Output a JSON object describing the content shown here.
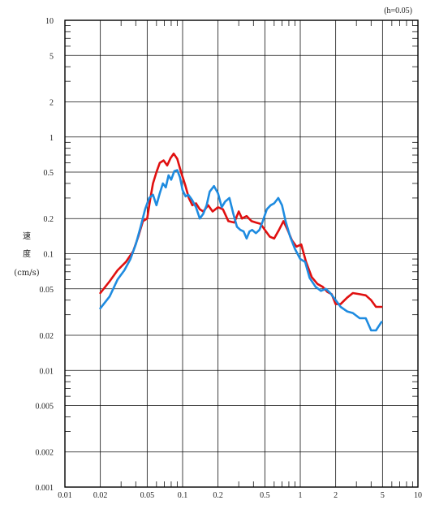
{
  "chart_data": {
    "type": "line",
    "note": "(h=0.05)",
    "ylabel": [
      "速",
      "度",
      "(cm/s)"
    ],
    "xlabel": "",
    "x_scale": "log",
    "y_scale": "log",
    "xlim": [
      0.01,
      10
    ],
    "ylim": [
      0.001,
      10
    ],
    "grid": true,
    "x_tick_labels": [
      {
        "value": 0.01,
        "label": "0.01"
      },
      {
        "value": 0.02,
        "label": "0.02"
      },
      {
        "value": 0.05,
        "label": "0.05"
      },
      {
        "value": 0.1,
        "label": "0.1"
      },
      {
        "value": 0.2,
        "label": "0.2"
      },
      {
        "value": 0.5,
        "label": "0.5"
      },
      {
        "value": 1,
        "label": "1"
      },
      {
        "value": 2,
        "label": "2"
      },
      {
        "value": 5,
        "label": "5"
      },
      {
        "value": 10,
        "label": "10"
      }
    ],
    "y_tick_labels": [
      {
        "value": 10,
        "label": "10"
      },
      {
        "value": 5,
        "label": "5"
      },
      {
        "value": 2,
        "label": "2"
      },
      {
        "value": 1,
        "label": "1"
      },
      {
        "value": 0.5,
        "label": "0.5"
      },
      {
        "value": 0.2,
        "label": "0.2"
      },
      {
        "value": 0.1,
        "label": "0.1"
      },
      {
        "value": 0.05,
        "label": "0.05"
      },
      {
        "value": 0.02,
        "label": "0.02"
      },
      {
        "value": 0.01,
        "label": "0.01"
      },
      {
        "value": 0.005,
        "label": "0.005"
      },
      {
        "value": 0.002,
        "label": "0.002"
      },
      {
        "value": 0.001,
        "label": "0.001"
      }
    ],
    "series": [
      {
        "color": "#e01010",
        "points": [
          [
            0.02,
            0.046
          ],
          [
            0.024,
            0.058
          ],
          [
            0.028,
            0.072
          ],
          [
            0.033,
            0.085
          ],
          [
            0.038,
            0.105
          ],
          [
            0.042,
            0.14
          ],
          [
            0.046,
            0.19
          ],
          [
            0.05,
            0.2
          ],
          [
            0.053,
            0.29
          ],
          [
            0.056,
            0.4
          ],
          [
            0.06,
            0.5
          ],
          [
            0.064,
            0.6
          ],
          [
            0.069,
            0.63
          ],
          [
            0.074,
            0.57
          ],
          [
            0.079,
            0.66
          ],
          [
            0.084,
            0.72
          ],
          [
            0.09,
            0.65
          ],
          [
            0.097,
            0.5
          ],
          [
            0.105,
            0.39
          ],
          [
            0.113,
            0.3
          ],
          [
            0.121,
            0.26
          ],
          [
            0.13,
            0.27
          ],
          [
            0.14,
            0.24
          ],
          [
            0.15,
            0.23
          ],
          [
            0.165,
            0.26
          ],
          [
            0.18,
            0.23
          ],
          [
            0.2,
            0.25
          ],
          [
            0.22,
            0.24
          ],
          [
            0.245,
            0.19
          ],
          [
            0.275,
            0.185
          ],
          [
            0.3,
            0.23
          ],
          [
            0.32,
            0.2
          ],
          [
            0.35,
            0.21
          ],
          [
            0.385,
            0.19
          ],
          [
            0.42,
            0.185
          ],
          [
            0.46,
            0.18
          ],
          [
            0.5,
            0.16
          ],
          [
            0.55,
            0.14
          ],
          [
            0.6,
            0.135
          ],
          [
            0.66,
            0.16
          ],
          [
            0.72,
            0.19
          ],
          [
            0.78,
            0.16
          ],
          [
            0.85,
            0.13
          ],
          [
            0.93,
            0.115
          ],
          [
            1.02,
            0.12
          ],
          [
            1.12,
            0.085
          ],
          [
            1.25,
            0.063
          ],
          [
            1.4,
            0.055
          ],
          [
            1.55,
            0.052
          ],
          [
            1.7,
            0.047
          ],
          [
            1.85,
            0.045
          ],
          [
            2.0,
            0.037
          ],
          [
            2.2,
            0.037
          ],
          [
            2.5,
            0.042
          ],
          [
            2.8,
            0.046
          ],
          [
            3.2,
            0.045
          ],
          [
            3.6,
            0.044
          ],
          [
            4.0,
            0.04
          ],
          [
            4.4,
            0.035
          ],
          [
            4.9,
            0.035
          ]
        ]
      },
      {
        "color": "#1e8be0",
        "points": [
          [
            0.02,
            0.034
          ],
          [
            0.024,
            0.043
          ],
          [
            0.028,
            0.06
          ],
          [
            0.032,
            0.072
          ],
          [
            0.036,
            0.09
          ],
          [
            0.04,
            0.12
          ],
          [
            0.044,
            0.17
          ],
          [
            0.048,
            0.24
          ],
          [
            0.052,
            0.3
          ],
          [
            0.056,
            0.32
          ],
          [
            0.06,
            0.26
          ],
          [
            0.064,
            0.33
          ],
          [
            0.068,
            0.4
          ],
          [
            0.072,
            0.37
          ],
          [
            0.076,
            0.47
          ],
          [
            0.08,
            0.43
          ],
          [
            0.085,
            0.51
          ],
          [
            0.09,
            0.52
          ],
          [
            0.095,
            0.45
          ],
          [
            0.1,
            0.35
          ],
          [
            0.106,
            0.31
          ],
          [
            0.112,
            0.32
          ],
          [
            0.12,
            0.29
          ],
          [
            0.13,
            0.25
          ],
          [
            0.14,
            0.2
          ],
          [
            0.15,
            0.22
          ],
          [
            0.16,
            0.26
          ],
          [
            0.17,
            0.34
          ],
          [
            0.185,
            0.38
          ],
          [
            0.2,
            0.33
          ],
          [
            0.215,
            0.25
          ],
          [
            0.23,
            0.28
          ],
          [
            0.25,
            0.3
          ],
          [
            0.27,
            0.22
          ],
          [
            0.29,
            0.17
          ],
          [
            0.31,
            0.16
          ],
          [
            0.33,
            0.155
          ],
          [
            0.35,
            0.135
          ],
          [
            0.37,
            0.155
          ],
          [
            0.39,
            0.16
          ],
          [
            0.42,
            0.15
          ],
          [
            0.45,
            0.16
          ],
          [
            0.48,
            0.19
          ],
          [
            0.52,
            0.24
          ],
          [
            0.56,
            0.26
          ],
          [
            0.6,
            0.27
          ],
          [
            0.65,
            0.3
          ],
          [
            0.7,
            0.26
          ],
          [
            0.75,
            0.19
          ],
          [
            0.82,
            0.14
          ],
          [
            0.9,
            0.11
          ],
          [
            1.0,
            0.09
          ],
          [
            1.1,
            0.085
          ],
          [
            1.2,
            0.062
          ],
          [
            1.35,
            0.052
          ],
          [
            1.5,
            0.048
          ],
          [
            1.65,
            0.05
          ],
          [
            1.8,
            0.046
          ],
          [
            2.0,
            0.04
          ],
          [
            2.2,
            0.035
          ],
          [
            2.5,
            0.032
          ],
          [
            2.8,
            0.031
          ],
          [
            3.2,
            0.028
          ],
          [
            3.6,
            0.028
          ],
          [
            4.0,
            0.022
          ],
          [
            4.4,
            0.022
          ],
          [
            4.9,
            0.026
          ]
        ]
      }
    ]
  }
}
